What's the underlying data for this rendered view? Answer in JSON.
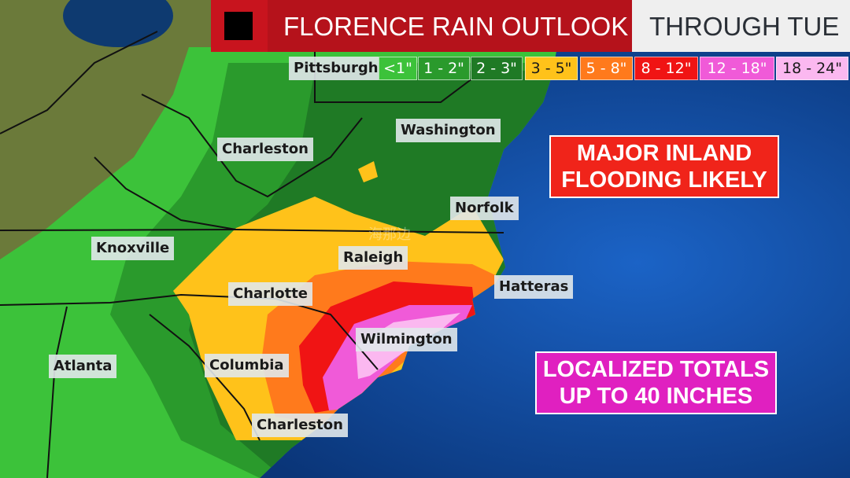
{
  "header": {
    "title": "FLORENCE RAIN OUTLOOK",
    "subtitle": "THROUGH TUE"
  },
  "legend": [
    {
      "label": "<1\"",
      "color": "#3cc23a",
      "text_color": "#ffffff"
    },
    {
      "label": "1 - 2\"",
      "color": "#2a9a2c",
      "text_color": "#ffffff"
    },
    {
      "label": "2 - 3\"",
      "color": "#1f7a25",
      "text_color": "#ffffff"
    },
    {
      "label": "3 - 5\"",
      "color": "#ffc21a",
      "text_color": "#1a1a1a"
    },
    {
      "label": "5 - 8\"",
      "color": "#ff7a1c",
      "text_color": "#ffffff"
    },
    {
      "label": "8 - 12\"",
      "color": "#f01414",
      "text_color": "#ffffff"
    },
    {
      "label": "12 - 18\"",
      "color": "#f05ad8",
      "text_color": "#ffffff"
    },
    {
      "label": "18 - 24\"",
      "color": "#fbb8f0",
      "text_color": "#1a1a1a"
    }
  ],
  "cities": [
    "Pittsburgh",
    "Washington",
    "Charleston",
    "Norfolk",
    "Knoxville",
    "Raleigh",
    "Hatteras",
    "Charlotte",
    "Wilmington",
    "Columbia",
    "Atlanta",
    "Charleston"
  ],
  "callouts": {
    "inland": {
      "line1": "MAJOR INLAND",
      "line2": "FLOODING LIKELY",
      "color": "#f0241a"
    },
    "totals": {
      "line1": "LOCALIZED TOTALS",
      "line2": "UP TO 40 INCHES",
      "color": "#e020c0"
    }
  },
  "watermark": "海那边",
  "colors": {
    "ocean": "#0c3f8c",
    "banner": "#b5121b"
  }
}
